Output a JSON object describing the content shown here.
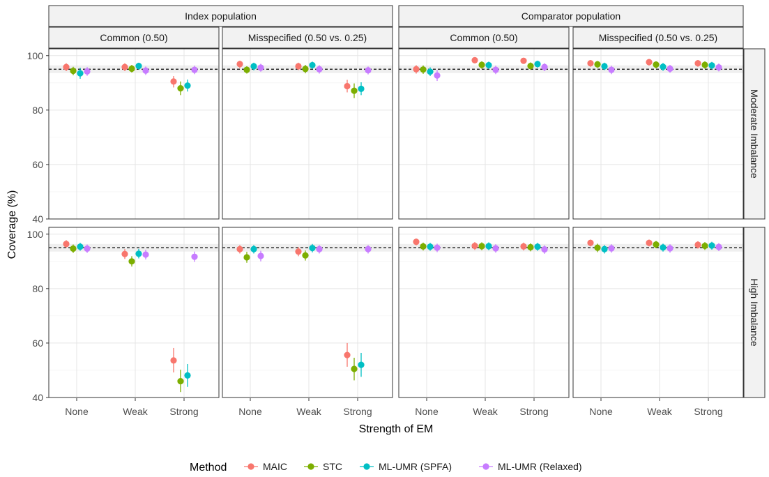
{
  "chart_data": {
    "type": "scatter",
    "subtype": "faceted-pointrange",
    "ylabel": "Coverage (%)",
    "xlabel": "Strength of EM",
    "x_categories": [
      "None",
      "Weak",
      "Strong"
    ],
    "ylim": [
      40,
      100
    ],
    "yticks": [
      40,
      60,
      80,
      100
    ],
    "reference_line": {
      "value": 95,
      "style": "dashed"
    },
    "reference_band": [
      93.6,
      96.4
    ],
    "grid": true,
    "legend": {
      "title": "Method",
      "position": "bottom",
      "entries": [
        {
          "name": "MAIC",
          "color": "#F8766D"
        },
        {
          "name": "STC",
          "color": "#7CAE00"
        },
        {
          "name": "ML-UMR (SPFA)",
          "color": "#00BFC4"
        },
        {
          "name": "ML-UMR (Relaxed)",
          "color": "#C77CFF"
        }
      ]
    },
    "population_labels": [
      "Index population",
      "Comparator population"
    ],
    "scenario_labels": [
      "Common (0.50)",
      "Misspecified (0.50 vs. 0.25)"
    ],
    "row_labels": [
      "Moderate Imbalance",
      "High Imbalance"
    ],
    "panels": [
      {
        "row": 0,
        "population": 0,
        "scenario": 0,
        "series": [
          {
            "name": "MAIC",
            "values": [
              [
                95.8,
                94.3,
                97.2
              ],
              [
                95.8,
                94.3,
                97.2
              ],
              [
                90.5,
                88.3,
                92.5
              ]
            ]
          },
          {
            "name": "STC",
            "values": [
              [
                94.4,
                92.8,
                95.9
              ],
              [
                95.2,
                93.8,
                96.6
              ],
              [
                88.0,
                85.5,
                90.5
              ]
            ]
          },
          {
            "name": "ML-UMR (SPFA)",
            "values": [
              [
                93.5,
                91.5,
                95.5
              ],
              [
                96.2,
                94.9,
                97.4
              ],
              [
                89.0,
                86.8,
                91.2
              ]
            ]
          },
          {
            "name": "ML-UMR (Relaxed)",
            "values": [
              [
                94.2,
                92.6,
                95.8
              ],
              [
                94.5,
                92.9,
                96.0
              ],
              [
                94.8,
                93.2,
                96.3
              ]
            ]
          }
        ]
      },
      {
        "row": 0,
        "population": 0,
        "scenario": 1,
        "series": [
          {
            "name": "MAIC",
            "values": [
              [
                96.9,
                95.4,
                98.1
              ],
              [
                96.1,
                94.7,
                97.4
              ],
              [
                88.8,
                86.5,
                91.1
              ]
            ]
          },
          {
            "name": "STC",
            "values": [
              [
                94.8,
                93.4,
                96.1
              ],
              [
                95.1,
                93.5,
                96.6
              ],
              [
                87.1,
                84.4,
                89.8
              ]
            ]
          },
          {
            "name": "ML-UMR (SPFA)",
            "values": [
              [
                96.1,
                94.6,
                97.4
              ],
              [
                96.5,
                95.1,
                97.8
              ],
              [
                87.8,
                85.5,
                90.2
              ]
            ]
          },
          {
            "name": "ML-UMR (Relaxed)",
            "values": [
              [
                95.6,
                94.1,
                97.0
              ],
              [
                95.0,
                93.4,
                96.5
              ],
              [
                94.6,
                93.1,
                96.0
              ]
            ]
          }
        ]
      },
      {
        "row": 0,
        "population": 1,
        "scenario": 0,
        "series": [
          {
            "name": "MAIC",
            "values": [
              [
                95.0,
                93.4,
                96.5
              ],
              [
                98.3,
                97.4,
                99.0
              ],
              [
                98.1,
                97.2,
                98.9
              ]
            ]
          },
          {
            "name": "STC",
            "values": [
              [
                94.9,
                93.3,
                96.4
              ],
              [
                96.6,
                95.2,
                97.9
              ],
              [
                96.2,
                94.8,
                97.5
              ]
            ]
          },
          {
            "name": "ML-UMR (SPFA)",
            "values": [
              [
                94.1,
                92.5,
                95.7
              ],
              [
                96.5,
                95.1,
                97.8
              ],
              [
                96.9,
                95.6,
                98.1
              ]
            ]
          },
          {
            "name": "ML-UMR (Relaxed)",
            "values": [
              [
                92.7,
                90.7,
                94.7
              ],
              [
                94.8,
                93.2,
                96.3
              ],
              [
                95.8,
                94.3,
                97.2
              ]
            ]
          }
        ]
      },
      {
        "row": 0,
        "population": 1,
        "scenario": 1,
        "series": [
          {
            "name": "MAIC",
            "values": [
              [
                97.2,
                95.9,
                98.4
              ],
              [
                97.6,
                96.4,
                98.7
              ],
              [
                97.2,
                95.9,
                98.4
              ]
            ]
          },
          {
            "name": "STC",
            "values": [
              [
                96.8,
                95.5,
                98.0
              ],
              [
                96.7,
                95.3,
                97.9
              ],
              [
                96.6,
                95.2,
                97.9
              ]
            ]
          },
          {
            "name": "ML-UMR (SPFA)",
            "values": [
              [
                96.1,
                94.7,
                97.4
              ],
              [
                95.9,
                94.4,
                97.3
              ],
              [
                96.4,
                95.0,
                97.7
              ]
            ]
          },
          {
            "name": "ML-UMR (Relaxed)",
            "values": [
              [
                94.8,
                93.2,
                96.3
              ],
              [
                95.2,
                93.7,
                96.6
              ],
              [
                95.7,
                94.2,
                97.1
              ]
            ]
          }
        ]
      },
      {
        "row": 1,
        "population": 0,
        "scenario": 0,
        "series": [
          {
            "name": "MAIC",
            "values": [
              [
                96.4,
                95.0,
                97.8
              ],
              [
                92.7,
                90.9,
                94.5
              ],
              [
                53.6,
                49.2,
                58.2
              ]
            ]
          },
          {
            "name": "STC",
            "values": [
              [
                94.7,
                93.1,
                96.2
              ],
              [
                90.0,
                88.1,
                91.9
              ],
              [
                46.0,
                42.0,
                50.2
              ]
            ]
          },
          {
            "name": "ML-UMR (SPFA)",
            "values": [
              [
                95.4,
                93.9,
                96.8
              ],
              [
                92.8,
                91.1,
                94.6
              ],
              [
                48.1,
                43.9,
                52.3
              ]
            ]
          },
          {
            "name": "ML-UMR (Relaxed)",
            "values": [
              [
                94.7,
                93.1,
                96.2
              ],
              [
                92.5,
                90.7,
                94.3
              ],
              [
                91.7,
                89.8,
                93.6
              ]
            ]
          }
        ]
      },
      {
        "row": 1,
        "population": 0,
        "scenario": 1,
        "series": [
          {
            "name": "MAIC",
            "values": [
              [
                94.5,
                92.9,
                96.0
              ],
              [
                93.6,
                91.9,
                95.3
              ],
              [
                55.6,
                51.3,
                60.0
              ]
            ]
          },
          {
            "name": "STC",
            "values": [
              [
                91.5,
                89.5,
                93.5
              ],
              [
                92.2,
                90.3,
                94.0
              ],
              [
                50.5,
                46.3,
                54.6
              ]
            ]
          },
          {
            "name": "ML-UMR (SPFA)",
            "values": [
              [
                94.5,
                92.9,
                96.0
              ],
              [
                94.9,
                93.3,
                96.4
              ],
              [
                52.0,
                47.6,
                56.4
              ]
            ]
          },
          {
            "name": "ML-UMR (Relaxed)",
            "values": [
              [
                92.0,
                90.0,
                93.9
              ],
              [
                94.5,
                92.9,
                96.0
              ],
              [
                94.5,
                92.9,
                96.0
              ]
            ]
          }
        ]
      },
      {
        "row": 1,
        "population": 1,
        "scenario": 0,
        "series": [
          {
            "name": "MAIC",
            "values": [
              [
                97.2,
                95.9,
                98.4
              ],
              [
                95.7,
                94.2,
                97.1
              ],
              [
                95.5,
                94.0,
                96.9
              ]
            ]
          },
          {
            "name": "STC",
            "values": [
              [
                95.5,
                94.0,
                96.9
              ],
              [
                95.6,
                94.1,
                97.0
              ],
              [
                95.2,
                93.7,
                96.6
              ]
            ]
          },
          {
            "name": "ML-UMR (SPFA)",
            "values": [
              [
                95.4,
                93.9,
                96.8
              ],
              [
                95.6,
                94.1,
                97.0
              ],
              [
                95.4,
                93.9,
                96.8
              ]
            ]
          },
          {
            "name": "ML-UMR (Relaxed)",
            "values": [
              [
                95.0,
                93.4,
                96.5
              ],
              [
                94.8,
                93.2,
                96.3
              ],
              [
                94.4,
                92.8,
                95.9
              ]
            ]
          }
        ]
      },
      {
        "row": 1,
        "population": 1,
        "scenario": 1,
        "series": [
          {
            "name": "MAIC",
            "values": [
              [
                96.8,
                95.5,
                98.0
              ],
              [
                96.8,
                95.5,
                98.0
              ],
              [
                96.1,
                94.7,
                97.4
              ]
            ]
          },
          {
            "name": "STC",
            "values": [
              [
                95.0,
                93.4,
                96.5
              ],
              [
                96.2,
                94.8,
                97.5
              ],
              [
                95.7,
                94.2,
                97.1
              ]
            ]
          },
          {
            "name": "ML-UMR (SPFA)",
            "values": [
              [
                94.5,
                92.9,
                96.0
              ],
              [
                95.1,
                93.6,
                96.5
              ],
              [
                95.8,
                94.3,
                97.2
              ]
            ]
          },
          {
            "name": "ML-UMR (Relaxed)",
            "values": [
              [
                94.8,
                93.2,
                96.3
              ],
              [
                94.8,
                93.2,
                96.3
              ],
              [
                95.3,
                93.8,
                96.7
              ]
            ]
          }
        ]
      }
    ]
  }
}
